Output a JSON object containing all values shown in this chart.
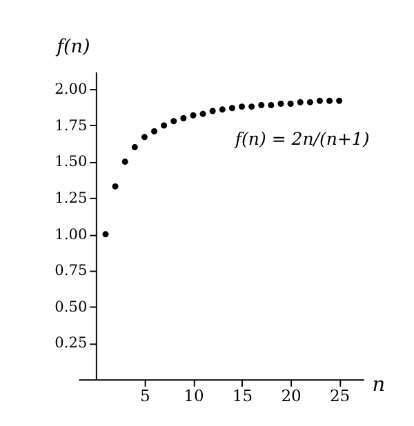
{
  "chart_data": {
    "type": "scatter",
    "xlabel": "n",
    "ylabel": "f(n)",
    "annotations": [
      "f(n) = 2n/(n+1)"
    ],
    "x": [
      1,
      2,
      3,
      4,
      5,
      6,
      7,
      8,
      9,
      10,
      11,
      12,
      13,
      14,
      15,
      16,
      17,
      18,
      19,
      20,
      21,
      22,
      23,
      24,
      25
    ],
    "series": [
      {
        "color": "#000000",
        "values": [
          1.0,
          1.33,
          1.5,
          1.6,
          1.67,
          1.71,
          1.75,
          1.78,
          1.8,
          1.82,
          1.83,
          1.85,
          1.86,
          1.87,
          1.88,
          1.88,
          1.89,
          1.89,
          1.9,
          1.9,
          1.91,
          1.91,
          1.92,
          1.92,
          1.92
        ]
      }
    ],
    "xlim": [
      -1.8,
      27.5
    ],
    "ylim": [
      0,
      2.12
    ],
    "xticks": [
      5,
      10,
      15,
      20,
      25
    ],
    "yticks": [
      {
        "value": 0.25,
        "label": "0.25"
      },
      {
        "value": 0.5,
        "label": "0.50"
      },
      {
        "value": 0.75,
        "label": "0.75"
      },
      {
        "value": 1,
        "label": "1.00"
      },
      {
        "value": 1.25,
        "label": "1.25"
      },
      {
        "value": 1.5,
        "label": "1.50"
      },
      {
        "value": 1.75,
        "label": "1.75"
      },
      {
        "value": 2,
        "label": "2.00"
      }
    ],
    "grid": false,
    "marker": "circle"
  }
}
